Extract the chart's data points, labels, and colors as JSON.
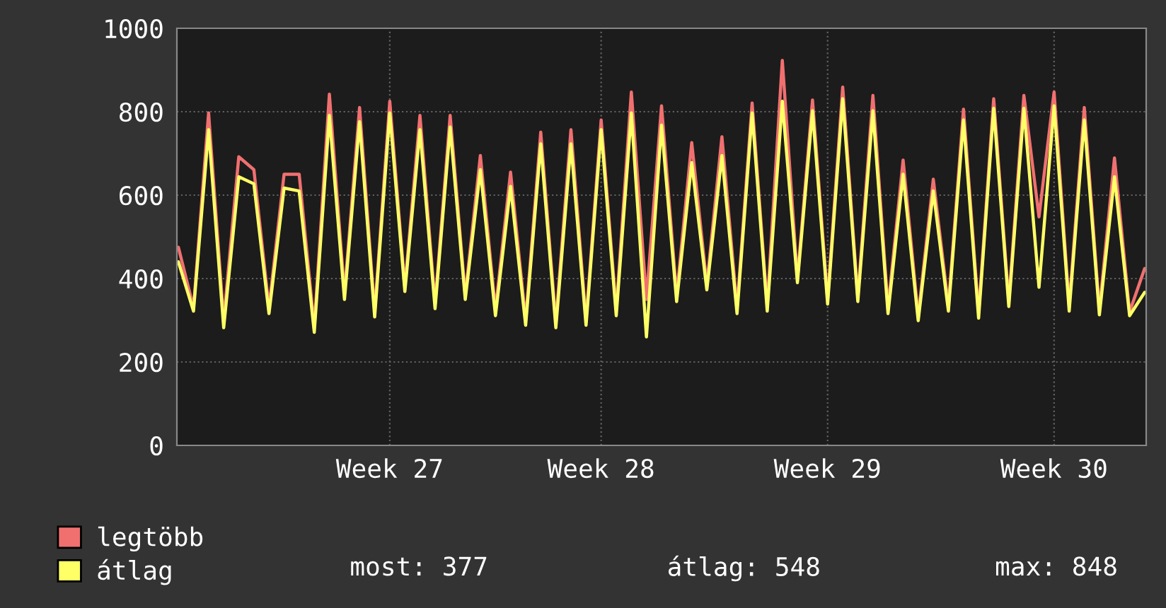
{
  "chart_data": {
    "type": "line",
    "categories": [
      null,
      null,
      null,
      null,
      null,
      null,
      null,
      null,
      null,
      null,
      null,
      null,
      null,
      null,
      "Week 27",
      null,
      null,
      null,
      null,
      null,
      null,
      null,
      null,
      null,
      null,
      null,
      null,
      null,
      "Week 28",
      null,
      null,
      null,
      null,
      null,
      null,
      null,
      null,
      null,
      null,
      null,
      null,
      null,
      null,
      "Week 29",
      null,
      null,
      null,
      null,
      null,
      null,
      null,
      null,
      null,
      null,
      null,
      null,
      null,
      null,
      "Week 30",
      null,
      null,
      null,
      null,
      null,
      null
    ],
    "series": [
      {
        "name": "legtöbb",
        "color": "#f07070",
        "values": [
          475,
          330,
          797,
          300,
          692,
          661,
          330,
          650,
          650,
          285,
          842,
          365,
          810,
          320,
          825,
          380,
          791,
          340,
          791,
          360,
          695,
          325,
          655,
          300,
          751,
          295,
          757,
          300,
          780,
          325,
          847,
          350,
          814,
          360,
          726,
          385,
          740,
          330,
          821,
          335,
          923,
          400,
          828,
          350,
          859,
          355,
          839,
          330,
          684,
          310,
          638,
          335,
          806,
          318,
          831,
          345,
          839,
          548,
          847,
          335,
          810,
          325,
          689,
          320,
          424
        ]
      },
      {
        "name": "átlag",
        "color": "#ffff66",
        "values": [
          440,
          322,
          757,
          282,
          644,
          627,
          316,
          617,
          610,
          271,
          791,
          350,
          776,
          308,
          797,
          369,
          757,
          328,
          763,
          350,
          661,
          311,
          621,
          288,
          723,
          282,
          723,
          288,
          757,
          311,
          797,
          260,
          768,
          345,
          678,
          373,
          695,
          316,
          797,
          322,
          825,
          390,
          802,
          339,
          831,
          345,
          802,
          316,
          650,
          299,
          610,
          322,
          780,
          305,
          808,
          333,
          808,
          379,
          814,
          322,
          780,
          313,
          644,
          311,
          367
        ]
      }
    ],
    "ylim": [
      0,
      1000
    ],
    "yticks": [
      0,
      200,
      400,
      600,
      800,
      1000
    ],
    "grid": true,
    "legend": "bottom left",
    "annotations": [
      "most: 377",
      "átlag: 548",
      "max: 848"
    ]
  }
}
